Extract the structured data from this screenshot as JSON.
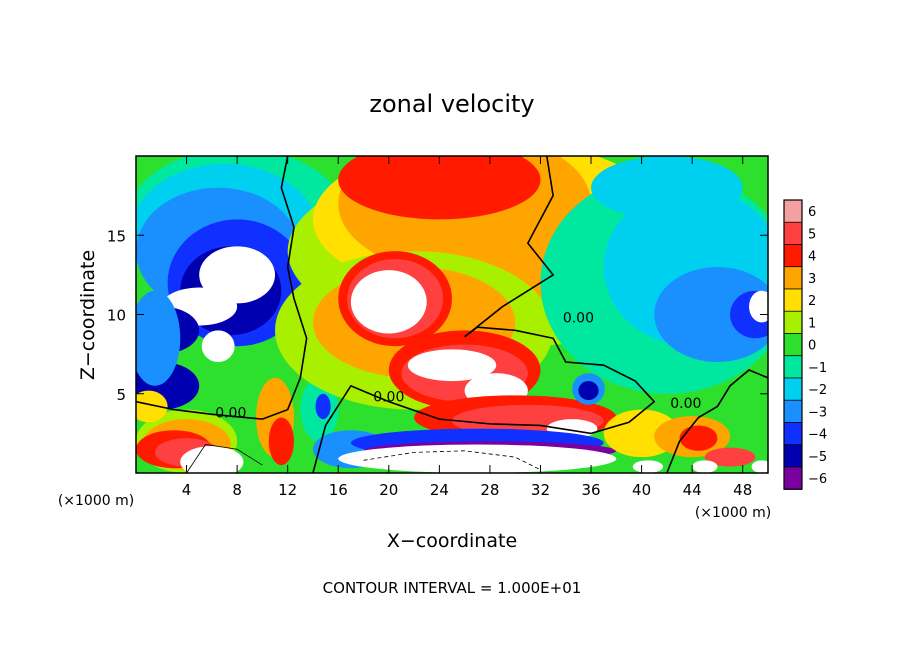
{
  "chart_data": {
    "type": "heatmap",
    "title": "zonal velocity",
    "xlabel": "X−coordinate",
    "ylabel": "Z−coordinate",
    "x_unit_left": "(×1000 m)",
    "x_unit_right": "(×1000 m)",
    "footer": "CONTOUR INTERVAL = 1.000E+01",
    "xlim": [
      0,
      50
    ],
    "ylim": [
      0,
      20
    ],
    "x_ticks": [
      4,
      8,
      12,
      16,
      20,
      24,
      28,
      32,
      36,
      40,
      44,
      48
    ],
    "y_ticks": [
      5,
      10,
      15
    ],
    "x_tick_labels": [
      "4",
      "8",
      "12",
      "16",
      "20",
      "24",
      "28",
      "32",
      "36",
      "40",
      "44",
      "48"
    ],
    "y_tick_labels": [
      "5",
      "10",
      "15"
    ],
    "colorbar": {
      "levels": [
        6,
        5,
        4,
        3,
        2,
        1,
        0,
        -1,
        -2,
        -3,
        -4,
        -5,
        -6
      ],
      "labels": [
        "6",
        "5",
        "4",
        "3",
        "2",
        "1",
        "0",
        "−1",
        "−2",
        "−3",
        "−4",
        "−5",
        "−6"
      ],
      "colors": [
        "#f4a0a0",
        "#ff4040",
        "#ff1a00",
        "#ffa500",
        "#ffe000",
        "#a8f000",
        "#2ee02e",
        "#00e8a0",
        "#00d0f0",
        "#1a90ff",
        "#1030ff",
        "#0000b0",
        "#7a00a0"
      ]
    },
    "contour_labels": [
      {
        "text": "0.00",
        "x": 7.5,
        "y": 3.5
      },
      {
        "text": "0.00",
        "x": 20,
        "y": 4.5
      },
      {
        "text": "0.00",
        "x": 35,
        "y": 9.5
      },
      {
        "text": "0.00",
        "x": 43.5,
        "y": 4.1
      }
    ]
  }
}
